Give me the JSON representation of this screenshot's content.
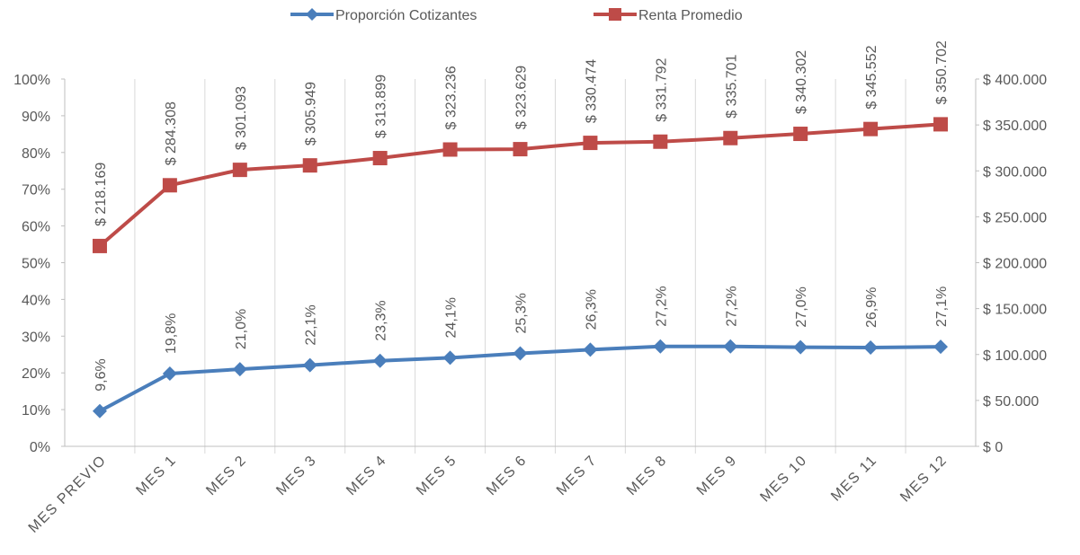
{
  "chart_data": {
    "type": "line",
    "categories": [
      "MES PREVIO",
      "MES 1",
      "MES 2",
      "MES 3",
      "MES 4",
      "MES 5",
      "MES 6",
      "MES 7",
      "MES 8",
      "MES 9",
      "MES 10",
      "MES 11",
      "MES 12"
    ],
    "series": [
      {
        "name": "Proporción Cotizantes",
        "color": "#4a7ebb",
        "marker": "diamond",
        "values": [
          9.6,
          19.8,
          21.0,
          22.1,
          23.3,
          24.1,
          25.3,
          26.3,
          27.2,
          27.2,
          27.0,
          26.9,
          27.1
        ],
        "value_labels": [
          "9,6%",
          "19,8%",
          "21,0%",
          "22,1%",
          "23,3%",
          "24,1%",
          "25,3%",
          "26,3%",
          "27,2%",
          "27,2%",
          "27,0%",
          "26,9%",
          "27,1%"
        ]
      },
      {
        "name": "Renta Promedio",
        "color": "#be4b48",
        "marker": "square",
        "axis": "y2",
        "values": [
          218169,
          284308,
          301093,
          305949,
          313899,
          323236,
          323629,
          330474,
          331792,
          335701,
          340302,
          345552,
          350702
        ],
        "value_labels": [
          "$ 218.169",
          "$ 284.308",
          "$ 301.093",
          "$ 305.949",
          "$ 313.899",
          "$ 323.236",
          "$ 323.629",
          "$ 330.474",
          "$ 331.792",
          "$ 335.701",
          "$ 340.302",
          "$ 345.552",
          "$ 350.702"
        ]
      }
    ],
    "ylim": [
      0,
      100
    ],
    "yticks": [
      {
        "value": 0,
        "label": "0%"
      },
      {
        "value": 10,
        "label": "10%"
      },
      {
        "value": 20,
        "label": "20%"
      },
      {
        "value": 30,
        "label": "30%"
      },
      {
        "value": 40,
        "label": "40%"
      },
      {
        "value": 50,
        "label": "50%"
      },
      {
        "value": 60,
        "label": "60%"
      },
      {
        "value": 70,
        "label": "70%"
      },
      {
        "value": 80,
        "label": "80%"
      },
      {
        "value": 90,
        "label": "90%"
      },
      {
        "value": 100,
        "label": "100%"
      }
    ],
    "y2lim": [
      0,
      400000
    ],
    "y2ticks": [
      {
        "value": 0,
        "label": "$ 0"
      },
      {
        "value": 50000,
        "label": "$ 50.000"
      },
      {
        "value": 100000,
        "label": "$ 100.000"
      },
      {
        "value": 150000,
        "label": "$ 150.000"
      },
      {
        "value": 200000,
        "label": "$ 200.000"
      },
      {
        "value": 250000,
        "label": "$ 250.000"
      },
      {
        "value": 300000,
        "label": "$ 300.000"
      },
      {
        "value": 350000,
        "label": "$ 350.000"
      },
      {
        "value": 400000,
        "label": "$ 400.000"
      }
    ],
    "legend": "top",
    "category_grid": true
  }
}
